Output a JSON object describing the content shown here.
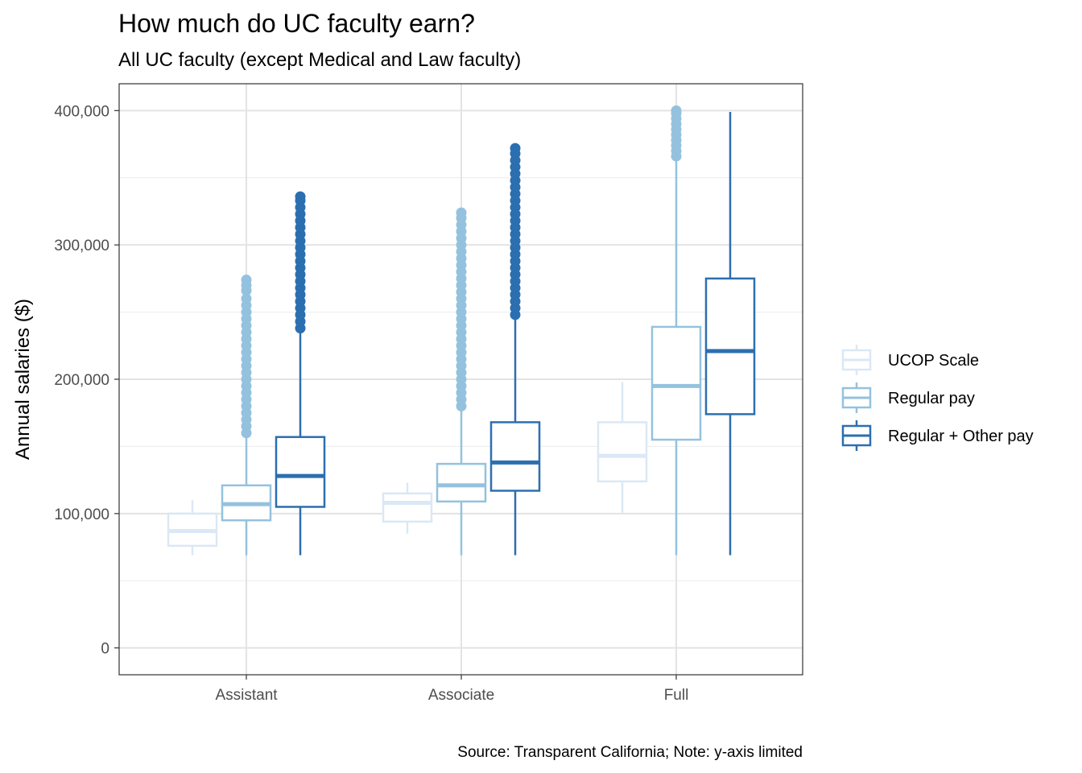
{
  "chart_data": {
    "type": "box",
    "title": "How much do UC faculty earn?",
    "subtitle": "All UC faculty (except Medical and Law faculty)",
    "xlabel": "",
    "ylabel": "Annual salaries ($)",
    "caption": "Source: Transparent California; Note: y-axis limited",
    "categories": [
      "Assistant",
      "Associate",
      "Full"
    ],
    "ylim": [
      -20000,
      420000
    ],
    "yticks": [
      0,
      100000,
      200000,
      300000,
      400000
    ],
    "ytick_labels": [
      "0",
      "100,000",
      "200,000",
      "300,000",
      "400,000"
    ],
    "grid": true,
    "legend_position": "right",
    "series": [
      {
        "name": "UCOP Scale",
        "color": "#dbe8f5",
        "boxes": [
          {
            "category": "Assistant",
            "whisker_low": 69000,
            "q1": 76000,
            "median": 87000,
            "q3": 100000,
            "whisker_high": 110000,
            "outliers": []
          },
          {
            "category": "Associate",
            "whisker_low": 85000,
            "q1": 94000,
            "median": 108000,
            "q3": 115000,
            "whisker_high": 123000,
            "outliers": []
          },
          {
            "category": "Full",
            "whisker_low": 100000,
            "q1": 124000,
            "median": 143000,
            "q3": 168000,
            "whisker_high": 198000,
            "outliers": []
          }
        ]
      },
      {
        "name": "Regular pay",
        "color": "#94c2de",
        "boxes": [
          {
            "category": "Assistant",
            "whisker_low": 69000,
            "q1": 95000,
            "median": 107000,
            "q3": 121000,
            "whisker_high": 157000,
            "outliers": [
              160000,
              165000,
              170000,
              175000,
              180000,
              185000,
              190000,
              195000,
              200000,
              205000,
              210000,
              215000,
              220000,
              225000,
              230000,
              235000,
              240000,
              245000,
              250000,
              255000,
              260000,
              266000,
              270000,
              274000
            ]
          },
          {
            "category": "Associate",
            "whisker_low": 69000,
            "q1": 109000,
            "median": 121000,
            "q3": 137000,
            "whisker_high": 177000,
            "outliers": [
              180000,
              185000,
              190000,
              195000,
              200000,
              205000,
              210000,
              215000,
              220000,
              225000,
              230000,
              235000,
              240000,
              245000,
              250000,
              255000,
              260000,
              265000,
              270000,
              275000,
              280000,
              285000,
              290000,
              295000,
              300000,
              305000,
              310000,
              315000,
              320000,
              324000
            ]
          },
          {
            "category": "Full",
            "whisker_low": 69000,
            "q1": 155000,
            "median": 195000,
            "q3": 239000,
            "whisker_high": 364000,
            "outliers": [
              366000,
              370000,
              374000,
              378000,
              382000,
              386000,
              390000,
              394000,
              398000,
              400000
            ]
          }
        ]
      },
      {
        "name": "Regular + Other pay",
        "color": "#2b6fb0",
        "boxes": [
          {
            "category": "Assistant",
            "whisker_low": 69000,
            "q1": 105000,
            "median": 128000,
            "q3": 157000,
            "whisker_high": 236000,
            "outliers": [
              238000,
              243000,
              248000,
              253000,
              258000,
              263000,
              268000,
              273000,
              278000,
              283000,
              288000,
              293000,
              298000,
              303000,
              308000,
              313000,
              318000,
              323000,
              328000,
              333000,
              336000
            ]
          },
          {
            "category": "Associate",
            "whisker_low": 69000,
            "q1": 117000,
            "median": 138000,
            "q3": 168000,
            "whisker_high": 246000,
            "outliers": [
              248000,
              253000,
              258000,
              263000,
              268000,
              273000,
              278000,
              283000,
              288000,
              293000,
              298000,
              303000,
              308000,
              313000,
              318000,
              323000,
              328000,
              333000,
              338000,
              343000,
              348000,
              353000,
              358000,
              363000,
              368000,
              372000
            ]
          },
          {
            "category": "Full",
            "whisker_low": 69000,
            "q1": 174000,
            "median": 221000,
            "q3": 275000,
            "whisker_high": 399000,
            "outliers": []
          }
        ]
      }
    ]
  }
}
